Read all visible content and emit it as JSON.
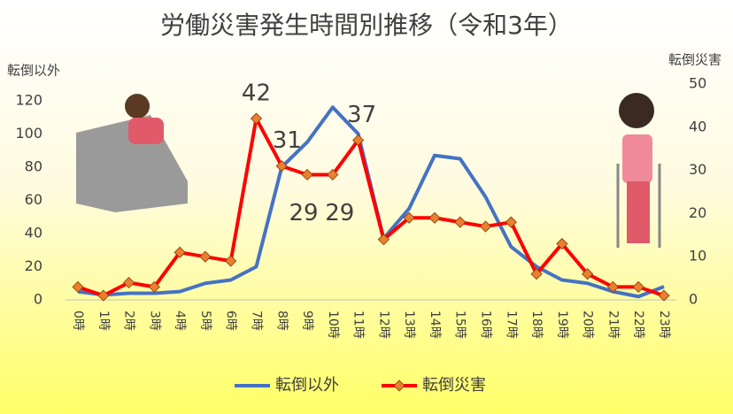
{
  "chart_data": {
    "type": "line",
    "title": "労働災害発生時間別推移（令和3年）",
    "y_label": "転倒以外",
    "y2_label": "転倒災害",
    "categories": [
      "0時",
      "1時",
      "2時",
      "3時",
      "4時",
      "5時",
      "6時",
      "7時",
      "8時",
      "9時",
      "10時",
      "11時",
      "12時",
      "13時",
      "14時",
      "15時",
      "16時",
      "17時",
      "18時",
      "19時",
      "20時",
      "21時",
      "22時",
      "23時"
    ],
    "series": [
      {
        "name": "転倒以外",
        "color": "#4472c4",
        "values": [
          5,
          3,
          4,
          4,
          5,
          10,
          12,
          20,
          80,
          95,
          116,
          100,
          37,
          55,
          87,
          85,
          62,
          32,
          20,
          12,
          10,
          5,
          2,
          8
        ]
      },
      {
        "name": "転倒災害",
        "color": "#ff0000",
        "marker_color": "#ed7d31",
        "axis": "y2",
        "values": [
          3,
          1,
          4,
          3,
          11,
          10,
          9,
          42,
          31,
          29,
          29,
          37,
          14,
          19,
          19,
          18,
          17,
          18,
          6,
          13,
          6,
          3,
          3,
          1
        ],
        "value_labels": [
          null,
          null,
          null,
          null,
          null,
          null,
          null,
          "42",
          "31",
          "29",
          "29",
          "37",
          null,
          null,
          null,
          null,
          null,
          null,
          null,
          null,
          null,
          null,
          null,
          null
        ]
      }
    ],
    "ylim": [
      0,
      130
    ],
    "yticks": [
      0,
      20,
      40,
      60,
      80,
      100,
      120
    ],
    "y2lim": [
      0,
      50
    ],
    "y2ticks": [
      0,
      10,
      20,
      30,
      40,
      50
    ],
    "legend": "bottom"
  }
}
